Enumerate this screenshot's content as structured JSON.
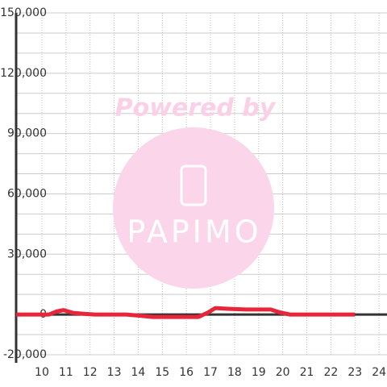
{
  "chart_data": {
    "type": "line",
    "watermark": {
      "line1": "Powered by",
      "line2": "PAPIMO"
    },
    "x": [
      8.93,
      10.3,
      10.6,
      10.9,
      11.3,
      11.8,
      12.2,
      13.5,
      14.0,
      14.6,
      15.5,
      16.5,
      16.9,
      17.2,
      17.8,
      18.5,
      19.5,
      19.9,
      20.3,
      21.0,
      22.0,
      23.0
    ],
    "series": [
      {
        "color": "#e8263a",
        "values": [
          0,
          0,
          1500,
          2200,
          800,
          300,
          0,
          0,
          -500,
          -1200,
          -1200,
          -1200,
          1000,
          3200,
          2800,
          2500,
          2500,
          1000,
          0,
          0,
          0,
          0
        ]
      }
    ],
    "xlim": [
      8.93,
      24.33
    ],
    "ylim": [
      -20000,
      150000
    ],
    "xticks": [
      10,
      11,
      12,
      13,
      14,
      15,
      16,
      17,
      18,
      19,
      20,
      21,
      22,
      23,
      24
    ],
    "yticks": [
      {
        "value": -20000,
        "label": "-20,000"
      },
      0,
      {
        "value": 30000,
        "label": "30,000"
      },
      {
        "value": 60000,
        "label": "60,000"
      },
      {
        "value": 90000,
        "label": "90,000"
      },
      {
        "value": 120000,
        "label": "120,000"
      },
      {
        "value": 150000,
        "label": "150,000"
      }
    ],
    "yminorticks": [
      -10000,
      10000,
      20000,
      40000,
      50000,
      70000,
      80000,
      100000,
      110000,
      130000,
      140000
    ],
    "grid": true
  }
}
